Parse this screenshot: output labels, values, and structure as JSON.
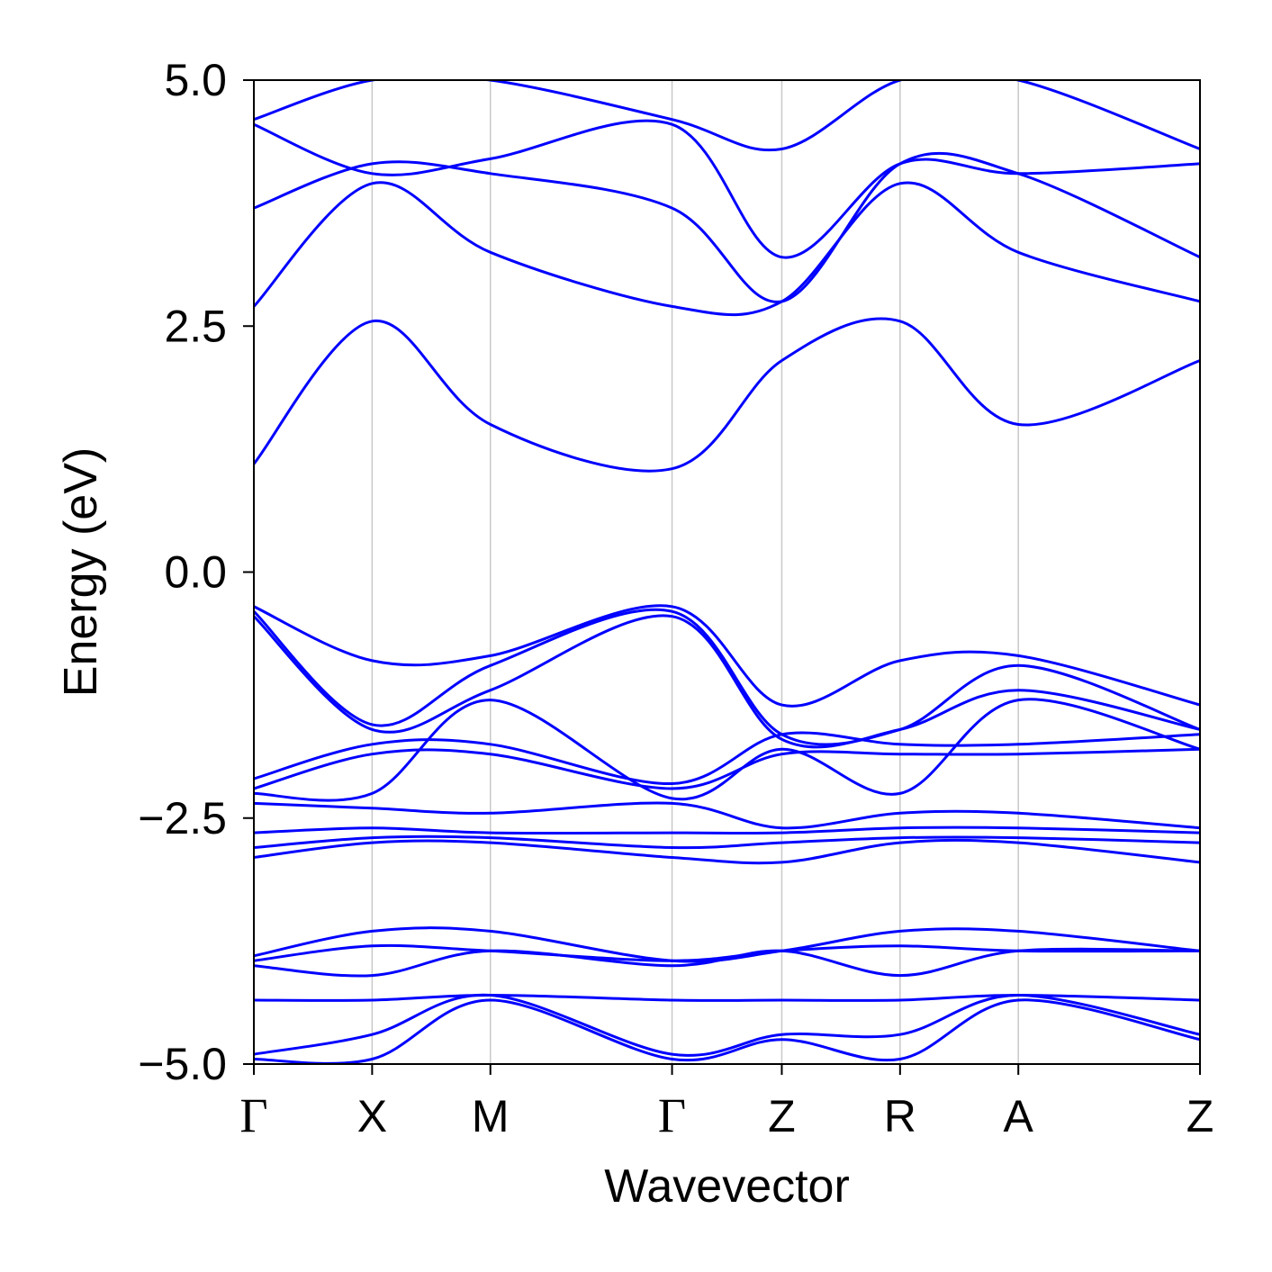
{
  "chart_data": {
    "type": "line",
    "xlabel": "Wavevector",
    "ylabel": "Energy (eV)",
    "ylim": [
      -5.0,
      5.0
    ],
    "yticks": [
      -5.0,
      -2.5,
      0.0,
      2.5,
      5.0
    ],
    "ytick_labels": [
      "−5.0",
      "−2.5",
      "0.0",
      "2.5",
      "5.0"
    ],
    "xlim": [
      0,
      1
    ],
    "high_symmetry_points": [
      {
        "label": "Γ",
        "x": 0.0
      },
      {
        "label": "X",
        "x": 0.125
      },
      {
        "label": "M",
        "x": 0.25
      },
      {
        "label": "Γ",
        "x": 0.442
      },
      {
        "label": "Z",
        "x": 0.558
      },
      {
        "label": "R",
        "x": 0.683
      },
      {
        "label": "A",
        "x": 0.808
      },
      {
        "label": "Z",
        "x": 1.0
      }
    ],
    "grid": "vertical lines at high-symmetry points",
    "line_color": "#0000ff",
    "x": [
      0.0,
      0.125,
      0.25,
      0.442,
      0.558,
      0.683,
      0.808,
      1.0
    ],
    "series": [
      {
        "values": [
          1.1,
          2.55,
          1.5,
          1.05,
          2.15,
          2.55,
          1.5,
          2.15
        ]
      },
      {
        "values": [
          2.7,
          3.95,
          3.25,
          2.7,
          2.75,
          3.95,
          3.25,
          2.75
        ]
      },
      {
        "values": [
          3.7,
          4.15,
          4.05,
          3.7,
          2.75,
          4.15,
          4.05,
          3.2
        ]
      },
      {
        "values": [
          4.55,
          4.05,
          4.2,
          4.55,
          3.2,
          4.15,
          4.05,
          4.15
        ]
      },
      {
        "values": [
          4.6,
          5.0,
          5.0,
          4.6,
          4.3,
          5.0,
          5.0,
          4.3
        ]
      },
      {
        "values": [
          -0.35,
          -0.9,
          -0.85,
          -0.35,
          -1.35,
          -0.9,
          -0.85,
          -1.35
        ]
      },
      {
        "values": [
          -0.4,
          -1.55,
          -0.95,
          -0.4,
          -1.65,
          -1.6,
          -0.95,
          -1.6
        ]
      },
      {
        "values": [
          -0.45,
          -1.6,
          -1.2,
          -0.45,
          -1.7,
          -1.6,
          -1.2,
          -1.6
        ]
      },
      {
        "values": [
          -2.1,
          -1.75,
          -1.75,
          -2.15,
          -1.65,
          -1.75,
          -1.75,
          -1.65
        ]
      },
      {
        "values": [
          -2.2,
          -1.85,
          -1.85,
          -2.2,
          -1.85,
          -1.85,
          -1.85,
          -1.8
        ]
      },
      {
        "values": [
          -2.25,
          -2.25,
          -1.3,
          -2.3,
          -1.8,
          -2.25,
          -1.3,
          -1.8
        ]
      },
      {
        "values": [
          -2.35,
          -2.4,
          -2.45,
          -2.35,
          -2.6,
          -2.45,
          -2.45,
          -2.6
        ]
      },
      {
        "values": [
          -2.65,
          -2.6,
          -2.65,
          -2.65,
          -2.65,
          -2.6,
          -2.6,
          -2.65
        ]
      },
      {
        "values": [
          -2.8,
          -2.7,
          -2.7,
          -2.8,
          -2.75,
          -2.7,
          -2.7,
          -2.75
        ]
      },
      {
        "values": [
          -2.9,
          -2.75,
          -2.75,
          -2.9,
          -2.95,
          -2.75,
          -2.75,
          -2.95
        ]
      },
      {
        "values": [
          -3.9,
          -3.65,
          -3.65,
          -3.95,
          -3.85,
          -3.65,
          -3.65,
          -3.85
        ]
      },
      {
        "values": [
          -3.95,
          -3.8,
          -3.85,
          -3.95,
          -3.85,
          -3.8,
          -3.85,
          -3.85
        ]
      },
      {
        "values": [
          -4.0,
          -4.1,
          -3.85,
          -4.0,
          -3.85,
          -4.1,
          -3.85,
          -3.85
        ]
      },
      {
        "values": [
          -4.35,
          -4.35,
          -4.3,
          -4.35,
          -4.35,
          -4.35,
          -4.3,
          -4.35
        ]
      },
      {
        "values": [
          -4.9,
          -4.7,
          -4.3,
          -4.9,
          -4.7,
          -4.7,
          -4.3,
          -4.7
        ]
      },
      {
        "values": [
          -4.95,
          -4.95,
          -4.35,
          -4.95,
          -4.75,
          -4.95,
          -4.35,
          -4.75
        ]
      }
    ]
  }
}
